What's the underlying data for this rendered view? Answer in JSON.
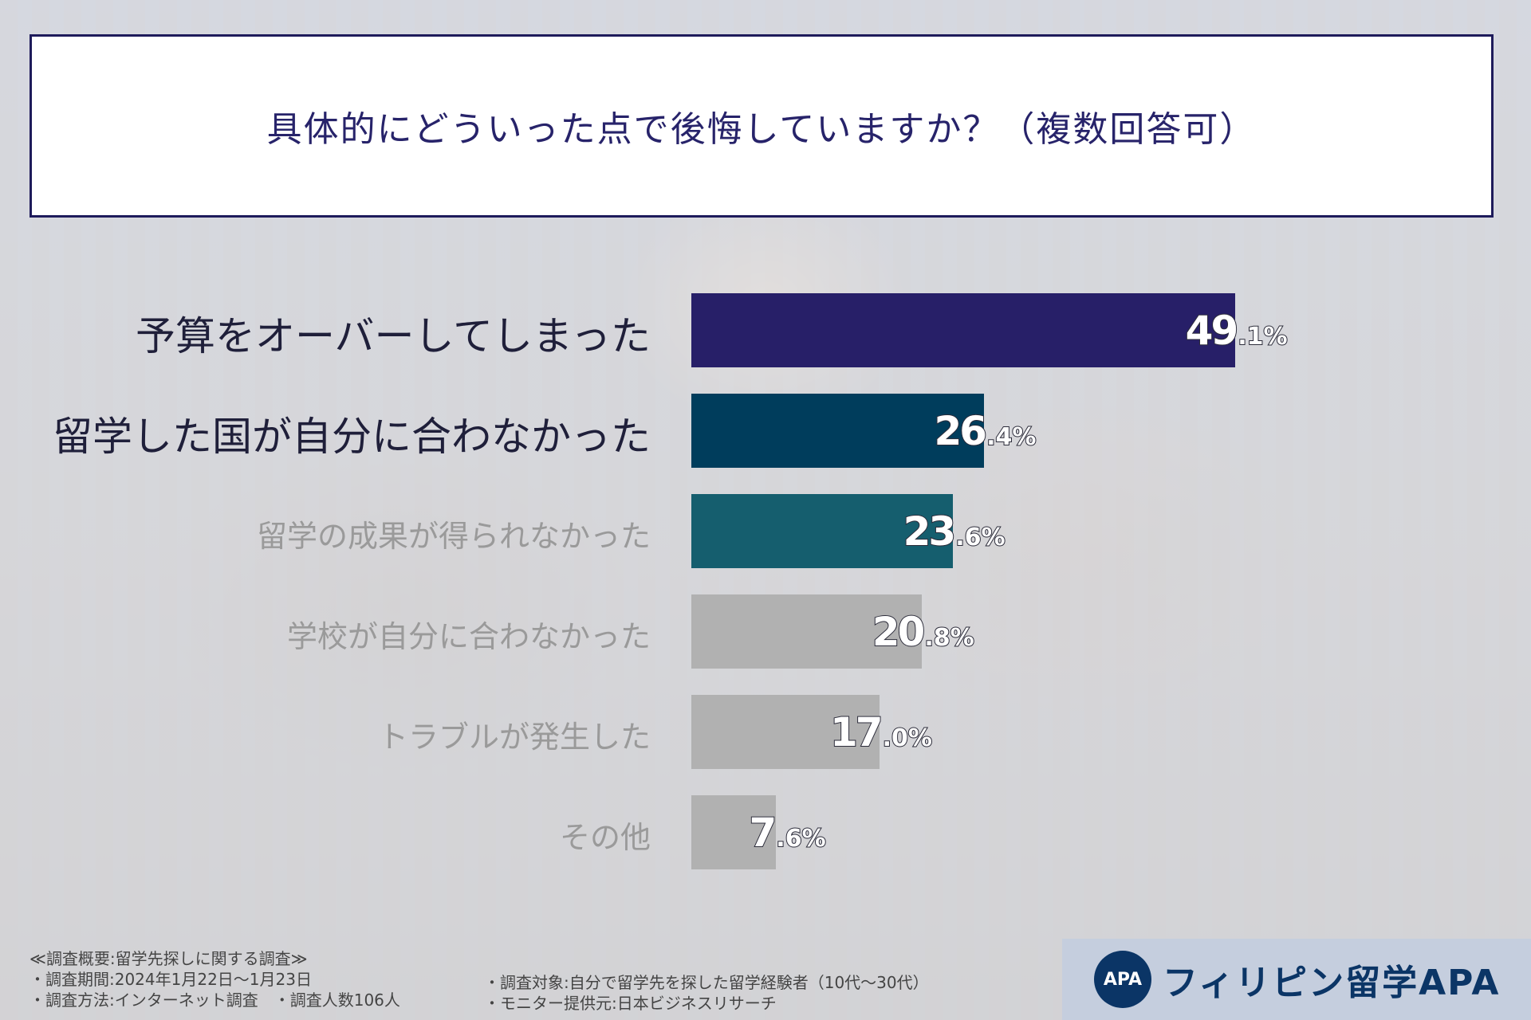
{
  "title": "具体的にどういった点で後悔していますか？（複数回答可）",
  "chart_data": {
    "type": "bar",
    "orientation": "horizontal",
    "title": "具体的にどういった点で後悔していますか？（複数回答可）",
    "categories": [
      "予算をオーバーしてしまった",
      "留学した国が自分に合わなかった",
      "留学の成果が得られなかった",
      "学校が自分に合わなかった",
      "トラブルが発生した",
      "その他"
    ],
    "values": [
      49.1,
      26.4,
      23.6,
      20.8,
      17.0,
      7.6
    ],
    "value_labels": [
      {
        "int": "49",
        "dec": ".1%"
      },
      {
        "int": "26",
        "dec": ".4%"
      },
      {
        "int": "23",
        "dec": ".6%"
      },
      {
        "int": "20",
        "dec": ".8%"
      },
      {
        "int": "17",
        "dec": ".0%"
      },
      {
        "int": "7",
        "dec": ".6%"
      }
    ],
    "unit": "%",
    "xlim": [
      0,
      60
    ],
    "grid": false,
    "colors": [
      "#271f68",
      "#003d5c",
      "#155e6e",
      "#b1b1b1",
      "#b1b1b1",
      "#b1b1b1"
    ],
    "label_colors": [
      "#1f1f3a",
      "#1f1f3a",
      "#9a9a9a",
      "#9a9a9a",
      "#9a9a9a",
      "#9a9a9a"
    ]
  },
  "notes": {
    "heading": "≪調査概要:留学先探しに関する調査≫",
    "period": "・調査期間:2024年1月22日〜1月23日",
    "method": "・調査方法:インターネット調査　・調査人数106人",
    "target": "・調査対象:自分で留学先を探した留学経験者（10代〜30代）",
    "provider": "・モニター提供元:日本ビジネスリサーチ"
  },
  "logo": {
    "mark": "APA",
    "text": "フィリピン留学APA",
    "icon": "apa-globe-logo-icon",
    "color": "#0b3566"
  }
}
